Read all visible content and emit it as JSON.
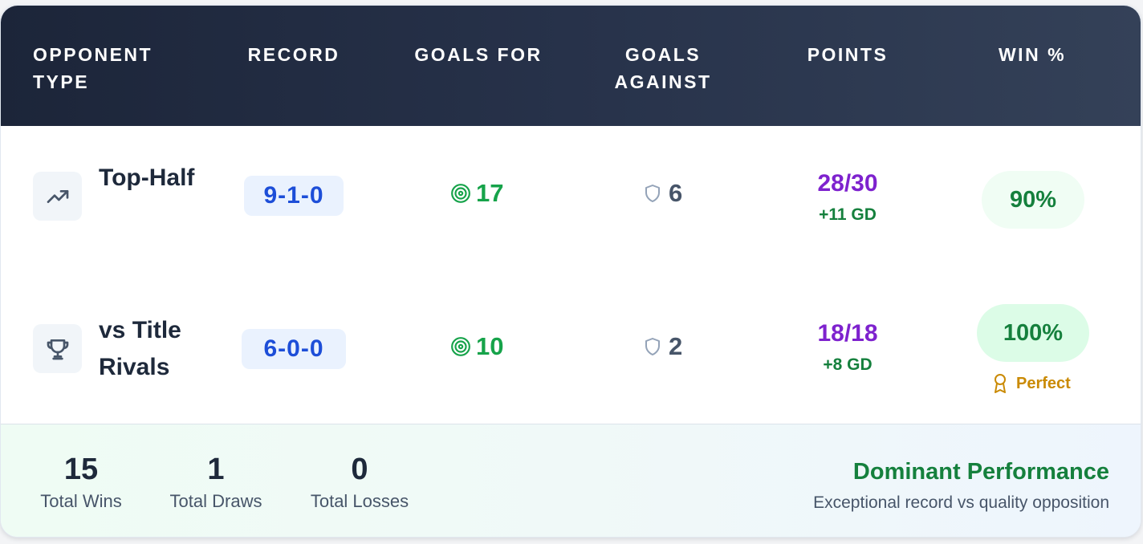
{
  "header": {
    "columns": [
      "OPPONENT TYPE",
      "RECORD",
      "GOALS FOR",
      "GOALS AGAINST",
      "POINTS",
      "WIN %"
    ]
  },
  "rows": [
    {
      "opponent": "Top-Half",
      "icon": "trending-up-icon",
      "record": "9-1-0",
      "goals_for": "17",
      "goals_against": "6",
      "points": "28/30",
      "goal_difference": "+11 GD",
      "win_pct": "90%"
    },
    {
      "opponent": "vs Title Rivals",
      "icon": "trophy-icon",
      "record": "6-0-0",
      "goals_for": "10",
      "goals_against": "2",
      "points": "18/18",
      "goal_difference": "+8 GD",
      "win_pct": "100%",
      "badge": "Perfect"
    }
  ],
  "footer": {
    "stats": [
      {
        "value": "15",
        "label": "Total Wins"
      },
      {
        "value": "1",
        "label": "Total Draws"
      },
      {
        "value": "0",
        "label": "Total Losses"
      }
    ],
    "summary_title": "Dominant Performance",
    "summary_subtitle": "Exceptional record vs quality opposition"
  },
  "colors": {
    "header_bg": "#1c2539",
    "record": "#1d4ed8",
    "goals_for": "#16a34a",
    "points": "#7e22ce",
    "goal_difference": "#15803d",
    "badge": "#ca8a04"
  }
}
